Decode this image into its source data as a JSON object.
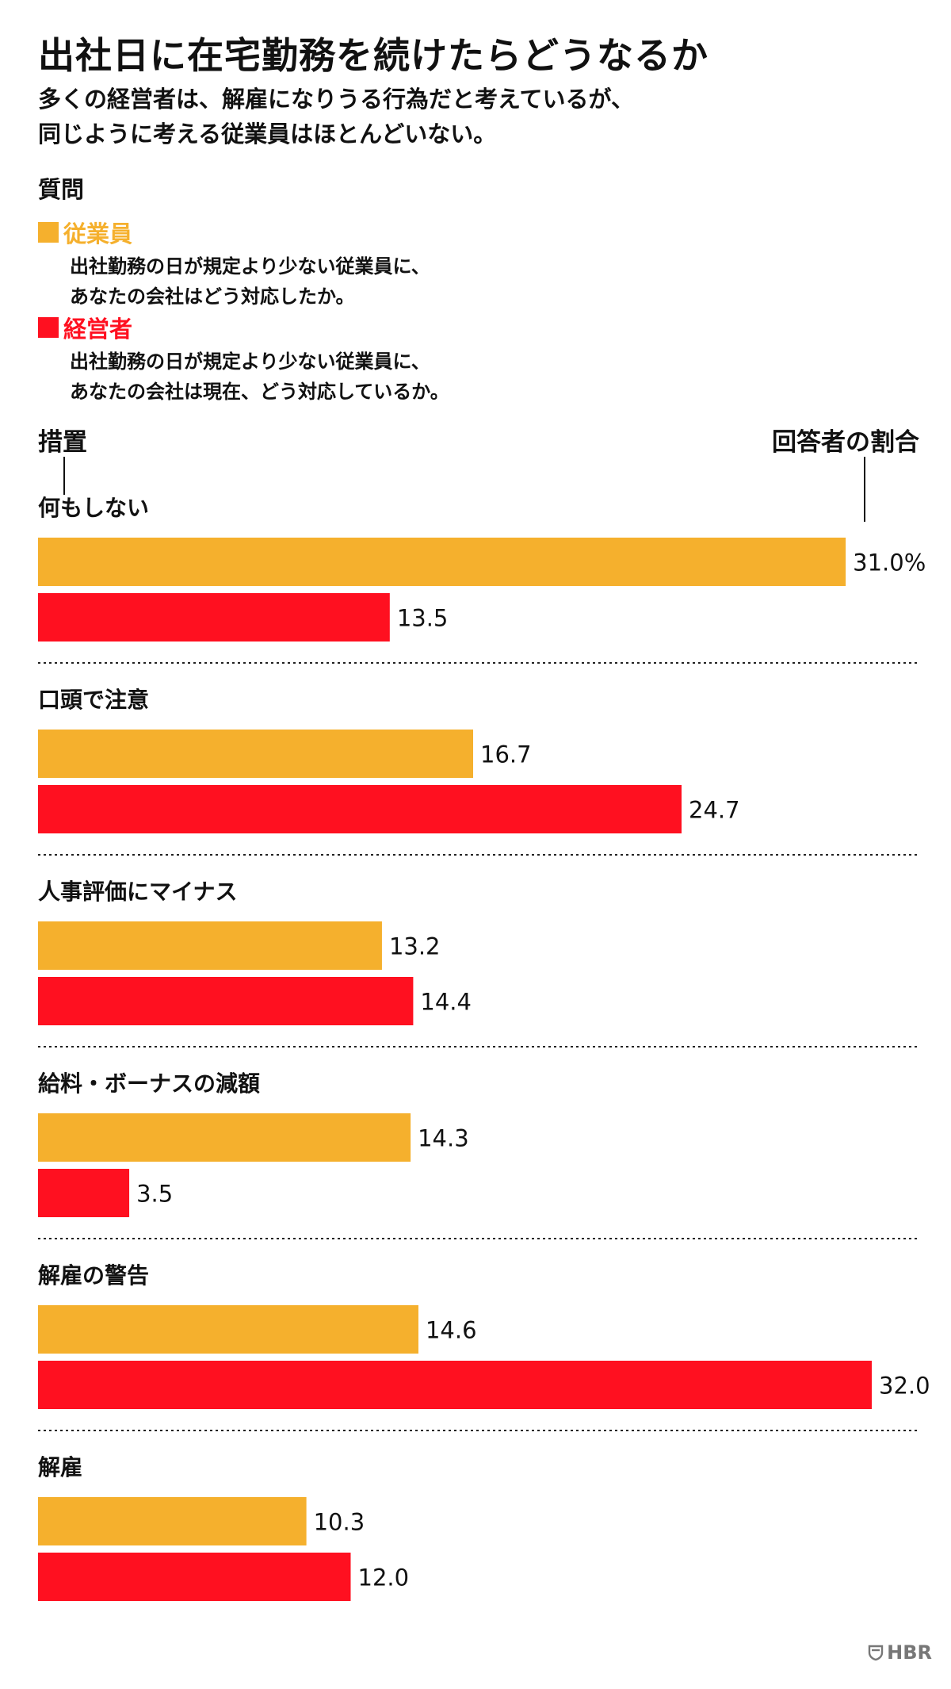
{
  "title": "出社日に在宅勤務を続けたらどうなるか",
  "subtitle_lines": [
    "多くの経営者は、解雇になりうる行為だと考えているが、",
    "同じように考える従業員はほとんどいない。"
  ],
  "question_heading": "質問",
  "legend": [
    {
      "name": "従業員",
      "color": "#F5B02D",
      "question_lines": [
        "出社勤務の日が規定より少ない従業員に、",
        "あなたの会社はどう対応したか。"
      ]
    },
    {
      "name": "経営者",
      "color": "#FF1020",
      "question_lines": [
        "出社勤務の日が規定より少ない従業員に、",
        "あなたの会社は現在、どう対応しているか。"
      ]
    }
  ],
  "measure_label": "措置",
  "share_label": "回答者の割合",
  "logo_text": "HBR",
  "chart_data": {
    "type": "bar",
    "orientation": "horizontal",
    "categories": [
      "何もしない",
      "口頭で注意",
      "人事評価にマイナス",
      "給料・ボーナスの減額",
      "解雇の警告",
      "解雇"
    ],
    "series": [
      {
        "name": "従業員",
        "color": "#F5B02D",
        "values": [
          31.0,
          16.7,
          13.2,
          14.3,
          14.6,
          10.3
        ],
        "labels": [
          "31.0%",
          "16.7",
          "13.2",
          "14.3",
          "14.6",
          "10.3"
        ]
      },
      {
        "name": "経営者",
        "color": "#FF1020",
        "values": [
          13.5,
          24.7,
          14.4,
          3.5,
          32.0,
          12.0
        ],
        "labels": [
          "13.5",
          "24.7",
          "14.4",
          "3.5",
          "32.0",
          "12.0"
        ]
      }
    ],
    "xlim": [
      0,
      32
    ],
    "grid": false,
    "legend_position": "top-left"
  }
}
